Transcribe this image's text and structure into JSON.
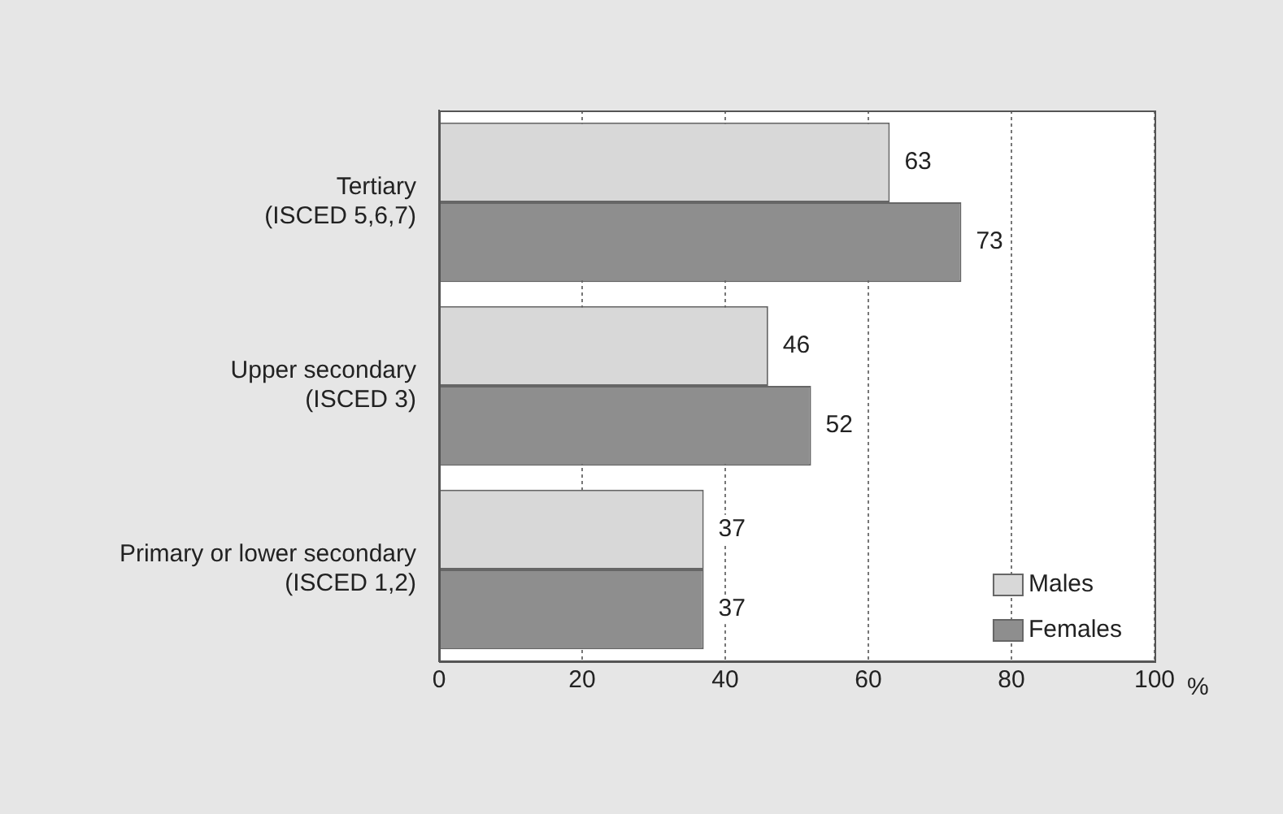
{
  "chart_data": {
    "type": "bar",
    "orientation": "horizontal",
    "categories": [
      "Tertiary\n(ISCED 5,6,7)",
      "Upper secondary\n(ISCED 3)",
      "Primary or lower secondary\n(ISCED 1,2)"
    ],
    "series": [
      {
        "name": "Males",
        "color": "#d8d8d8",
        "values": [
          63,
          46,
          37
        ]
      },
      {
        "name": "Females",
        "color": "#8e8e8e",
        "values": [
          73,
          52,
          37
        ]
      }
    ],
    "xlabel": "%",
    "xlim": [
      0,
      100
    ],
    "xticks": [
      0,
      20,
      40,
      60,
      80,
      100
    ],
    "grid": "x",
    "legend": "bottom right",
    "data_labels": true
  }
}
